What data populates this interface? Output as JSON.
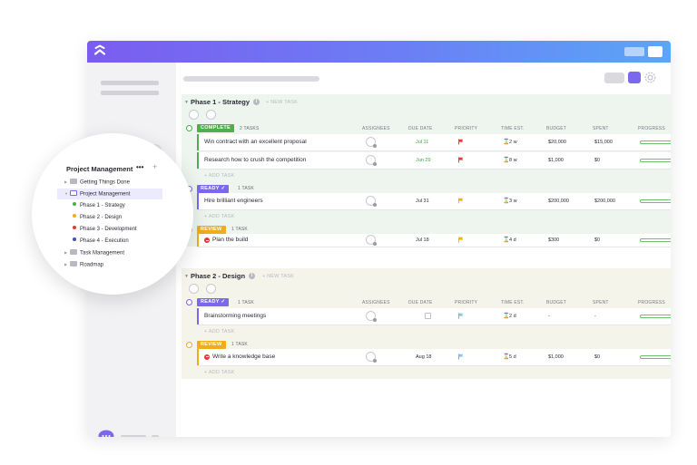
{
  "colors": {
    "accent": "#7b68ee",
    "complete": "#4caf50",
    "ready": "#7b68ee",
    "review": "#f0ad1b",
    "flag_urgent": "#e53935",
    "flag_high": "#f5b400",
    "flag_normal": "#5aa6f7",
    "due_green": "#3aa83f"
  },
  "columns": {
    "assignees": "ASSIGNEES",
    "due_date": "DUE DATE",
    "priority": "PRIORITY",
    "time_est": "TIME EST.",
    "budget": "BUDGET",
    "spent": "SPENT",
    "progress": "PROGRESS"
  },
  "new_task_label": "+ NEW TASK",
  "add_task_label": "+ ADD TASK",
  "phases": [
    {
      "title": "Phase 1 - Strategy",
      "groups": [
        {
          "status": "COMPLETE",
          "count": "2 TASKS",
          "tasks": [
            {
              "name": "Win contract with an excellent proposal",
              "due": "Jul 11",
              "priority_icon": "flag-red-icon",
              "time": "2 w",
              "budget": "$20,000",
              "spent": "$15,000"
            },
            {
              "name": "Research how to crush the competition",
              "due": "Jun 29",
              "priority_icon": "flag-red-icon",
              "time": "8 w",
              "budget": "$1,000",
              "spent": "$0"
            }
          ]
        },
        {
          "status": "READY",
          "count": "1 TASK",
          "tasks": [
            {
              "name": "Hire brilliant engineers",
              "due": "Jul 31",
              "priority_icon": "flag-yellow-icon",
              "time": "3 w",
              "budget": "$200,000",
              "spent": "$200,000"
            }
          ]
        },
        {
          "status": "REVIEW",
          "count": "1 TASK",
          "tasks": [
            {
              "name": "Plan the build",
              "due": "Jul 18",
              "priority_icon": "flag-yellow-icon",
              "time": "4 d",
              "budget": "$300",
              "spent": "$0"
            }
          ]
        }
      ]
    },
    {
      "title": "Phase 2 - Design",
      "groups": [
        {
          "status": "READY",
          "count": "1 TASK",
          "tasks": [
            {
              "name": "Brainstorming meetings",
              "due": "",
              "priority_icon": "flag-blue-icon",
              "time": "2 d",
              "budget": "-",
              "spent": "-"
            }
          ]
        },
        {
          "status": "REVIEW",
          "count": "1 TASK",
          "tasks": [
            {
              "name": "Write a knowledge base",
              "due": "Aug 18",
              "priority_icon": "flag-blue-icon",
              "time": "5 d",
              "budget": "$1,000",
              "spent": "$0"
            }
          ]
        }
      ]
    }
  ],
  "sidebar_popup": {
    "title": "Project Management",
    "menu_icon": "•••",
    "add_icon": "+",
    "items": [
      {
        "label": "Getting Things Done"
      },
      {
        "label": "Project Management"
      },
      {
        "label": "Phase 1 - Strategy",
        "dot": "#4caf50"
      },
      {
        "label": "Phase 2 - Design",
        "dot": "#f0ad1b"
      },
      {
        "label": "Phase 3 - Development",
        "dot": "#e53935"
      },
      {
        "label": "Phase 4 - Execution",
        "dot": "#3f51b5"
      },
      {
        "label": "Task Management"
      },
      {
        "label": "Roadmap"
      }
    ]
  }
}
